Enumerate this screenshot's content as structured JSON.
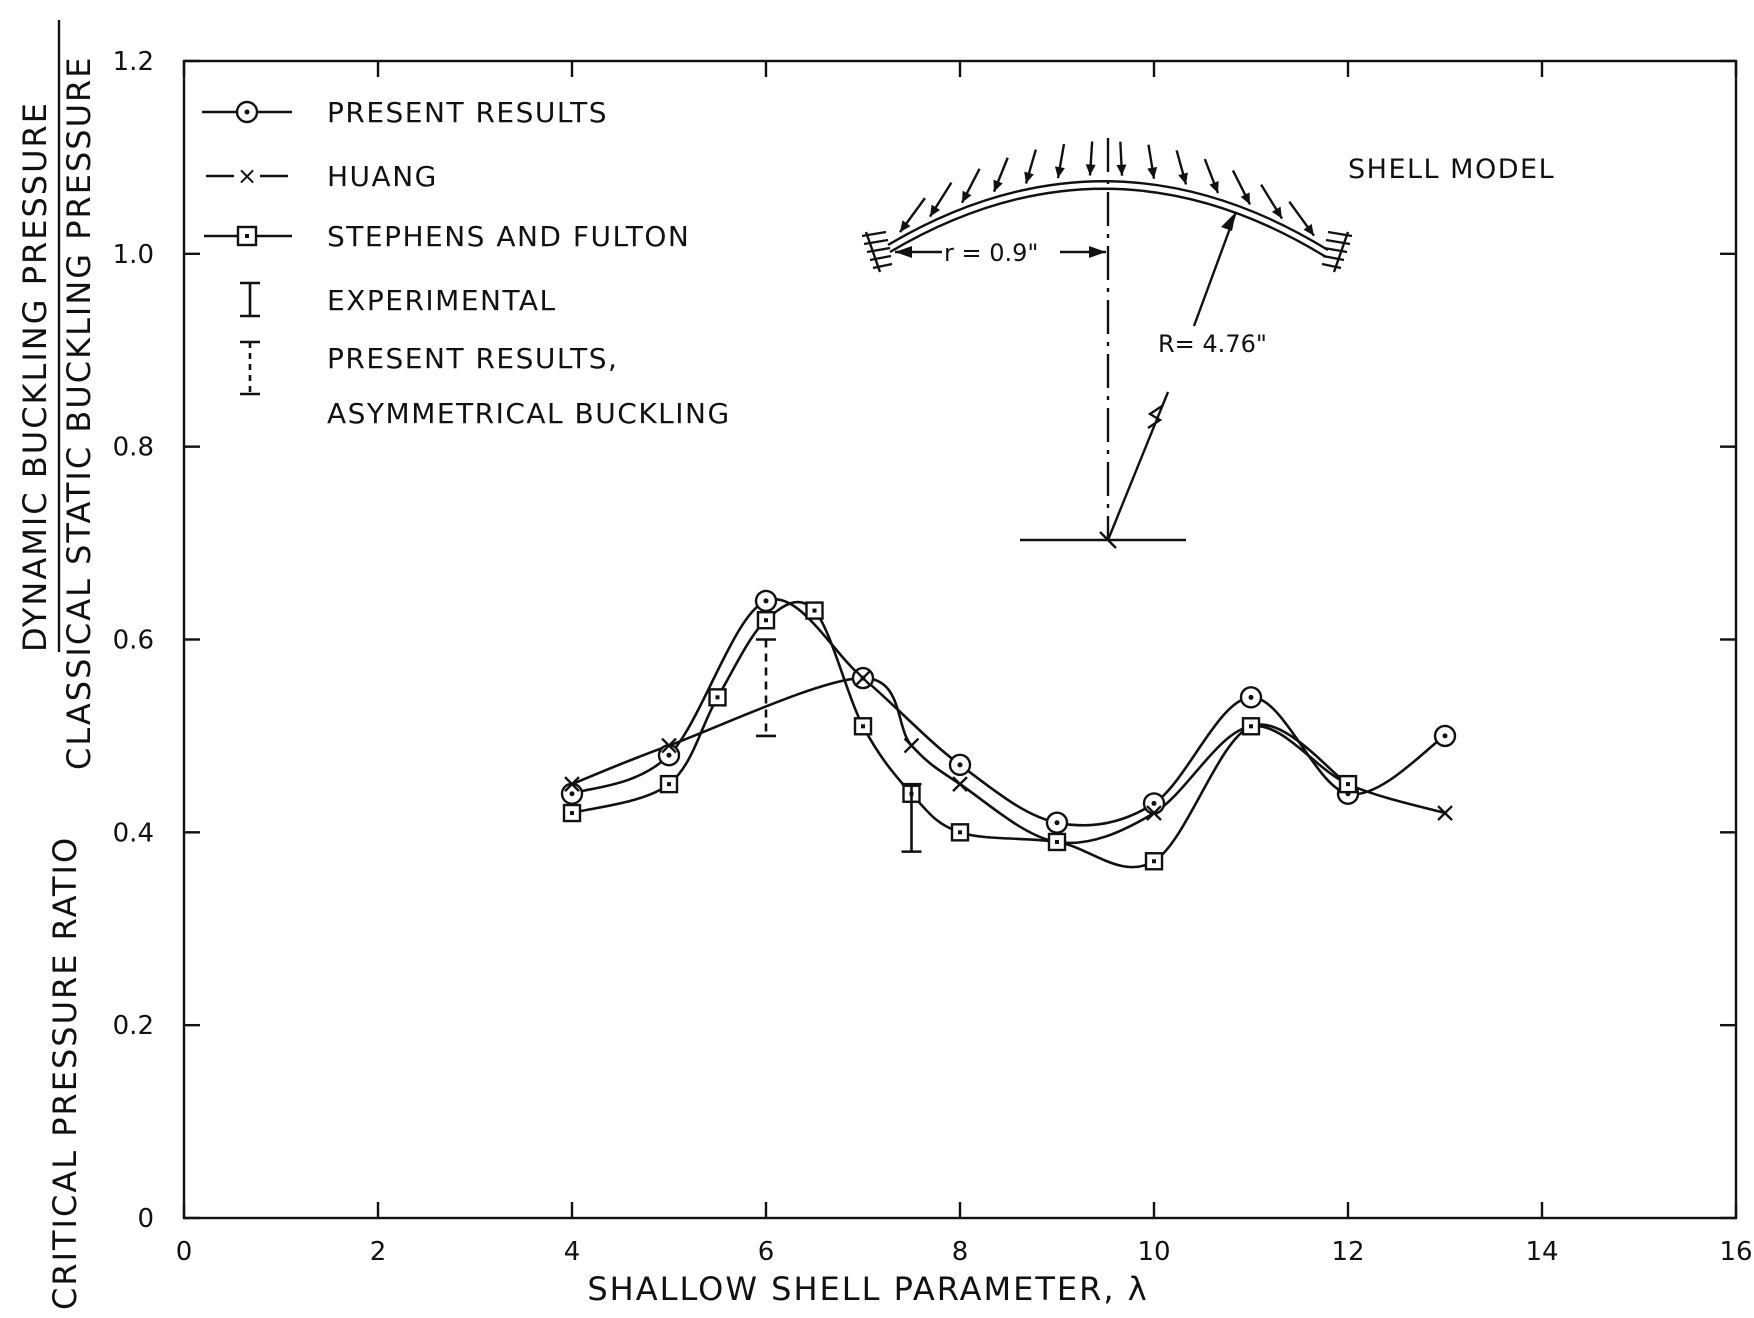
{
  "chart_data": {
    "type": "line",
    "xlabel": "SHALLOW SHELL PARAMETER, λ",
    "ylabel": {
      "prefix": "CRITICAL PRESSURE RATIO",
      "numerator": "DYNAMIC BUCKLING PRESSURE",
      "denominator": "CLASSICAL STATIC BUCKLING PRESSURE"
    },
    "xlim": [
      0,
      16
    ],
    "ylim": [
      0,
      1.2
    ],
    "xticks": [
      0,
      2,
      4,
      6,
      8,
      10,
      12,
      14,
      16
    ],
    "xtick_labels": [
      "0",
      "2",
      "4",
      "6",
      "8",
      "10",
      "12",
      "14",
      "16"
    ],
    "yticks": [
      0,
      0.2,
      0.4,
      0.6,
      0.8,
      1.0,
      1.2
    ],
    "ytick_labels": [
      "0",
      "0.2",
      "0.4",
      "0.6",
      "0.8",
      "1.0",
      "1.2"
    ],
    "grid": false,
    "legend_position": "top-left",
    "series": [
      {
        "name": "PRESENT RESULTS",
        "marker": "circle-dot",
        "x": [
          4,
          5,
          6,
          7,
          8,
          9,
          10,
          11,
          12,
          13
        ],
        "y": [
          0.44,
          0.48,
          0.64,
          0.56,
          0.47,
          0.41,
          0.43,
          0.54,
          0.44,
          0.5
        ]
      },
      {
        "name": "HUANG",
        "marker": "x",
        "x": [
          4,
          5,
          7,
          7.5,
          8,
          9,
          10,
          11,
          12,
          13
        ],
        "y": [
          0.45,
          0.49,
          0.56,
          0.49,
          0.45,
          0.39,
          0.42,
          0.51,
          0.45,
          0.42
        ]
      },
      {
        "name": "STEPHENS AND FULTON",
        "marker": "square-dot",
        "x": [
          4,
          5,
          5.5,
          6,
          6.5,
          7,
          7.5,
          8,
          9,
          10,
          11,
          12
        ],
        "y": [
          0.42,
          0.45,
          0.54,
          0.62,
          0.63,
          0.51,
          0.44,
          0.4,
          0.39,
          0.37,
          0.51,
          0.45
        ]
      }
    ],
    "experimental": [
      {
        "x": 7.5,
        "low": 0.38,
        "high": 0.45
      }
    ],
    "asymmetrical": [
      {
        "x": 6,
        "low": 0.5,
        "high": 0.6
      }
    ],
    "legend": [
      {
        "label": "PRESENT RESULTS"
      },
      {
        "label": "HUANG"
      },
      {
        "label": "STEPHENS AND FULTON"
      },
      {
        "label": "EXPERIMENTAL"
      },
      {
        "label": "PRESENT RESULTS,",
        "label2": "ASYMMETRICAL BUCKLING"
      }
    ],
    "inset": {
      "title": "SHELL MODEL",
      "r_label": "r = 0.9\"",
      "R_label": "R= 4.76\""
    }
  }
}
